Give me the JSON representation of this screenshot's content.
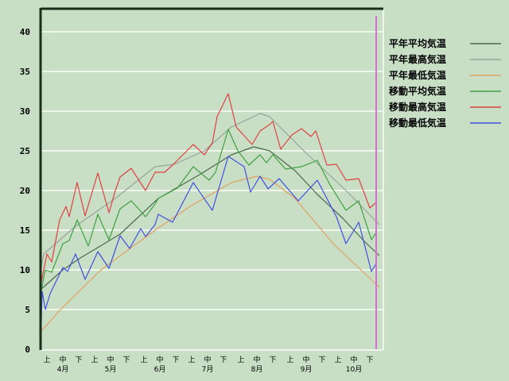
{
  "chart_data": {
    "type": "line",
    "title": "",
    "xlabel": "",
    "ylabel": "",
    "ylim": [
      0,
      40
    ],
    "yticks": [
      "0",
      "5",
      "10",
      "15",
      "20",
      "25",
      "30",
      "35",
      "40"
    ],
    "xlim": [
      "04-01",
      "10-31"
    ],
    "decade_labels": [
      "上",
      "中",
      "下"
    ],
    "months": [
      {
        "label": "4月",
        "month": "04"
      },
      {
        "label": "5月",
        "month": "05"
      },
      {
        "label": "6月",
        "month": "06"
      },
      {
        "label": "7月",
        "month": "07"
      },
      {
        "label": "8月",
        "month": "08"
      },
      {
        "label": "9月",
        "month": "09"
      },
      {
        "label": "10月",
        "month": "10"
      }
    ],
    "grid": true,
    "legend_position": "right",
    "marker_line_date": "10-29",
    "marker_line_color": "#d070d0",
    "series": [
      {
        "name": "平年平均気温",
        "color": "#4a6a4a",
        "points": [
          [
            "04-01",
            7.5
          ],
          [
            "04-15",
            10
          ],
          [
            "04-26",
            11.5
          ],
          [
            "05-21",
            14.5
          ],
          [
            "06-14",
            19
          ],
          [
            "07-10",
            22
          ],
          [
            "07-30",
            24.5
          ],
          [
            "08-13",
            25.5
          ],
          [
            "08-23",
            25
          ],
          [
            "09-08",
            22.5
          ],
          [
            "09-22",
            19.5
          ],
          [
            "10-08",
            16.5
          ],
          [
            "10-22",
            13.5
          ],
          [
            "10-31",
            11.8
          ]
        ]
      },
      {
        "name": "平年最高気温",
        "color": "#9aa39a",
        "points": [
          [
            "04-01",
            10
          ],
          [
            "04-03",
            12
          ],
          [
            "04-23",
            15.5
          ],
          [
            "05-18",
            19
          ],
          [
            "06-12",
            23
          ],
          [
            "06-24",
            23.3
          ],
          [
            "07-13",
            25
          ],
          [
            "07-30",
            28
          ],
          [
            "08-17",
            29.7
          ],
          [
            "08-23",
            29.3
          ],
          [
            "09-15",
            24.7
          ],
          [
            "10-10",
            20
          ],
          [
            "10-31",
            15.7
          ]
        ]
      },
      {
        "name": "平年最低気温",
        "color": "#e0a060",
        "points": [
          [
            "04-01",
            2.2
          ],
          [
            "04-15",
            5.3
          ],
          [
            "05-09",
            10
          ],
          [
            "06-12",
            15
          ],
          [
            "07-04",
            18
          ],
          [
            "07-30",
            21
          ],
          [
            "08-15",
            21.8
          ],
          [
            "08-23",
            21.4
          ],
          [
            "09-08",
            19
          ],
          [
            "10-02",
            13.3
          ],
          [
            "10-31",
            7.8
          ]
        ]
      },
      {
        "name": "移動平均気温",
        "color": "#40a040",
        "points": [
          [
            "04-01",
            7
          ],
          [
            "04-04",
            10
          ],
          [
            "04-08",
            9.7
          ],
          [
            "04-15",
            13.3
          ],
          [
            "04-19",
            13.7
          ],
          [
            "04-24",
            16.3
          ],
          [
            "05-01",
            13
          ],
          [
            "05-07",
            17
          ],
          [
            "05-14",
            13.8
          ],
          [
            "05-21",
            17.7
          ],
          [
            "05-28",
            18.7
          ],
          [
            "06-06",
            16.7
          ],
          [
            "06-12",
            18.3
          ],
          [
            "06-14",
            19
          ],
          [
            "06-26",
            20.3
          ],
          [
            "07-06",
            23
          ],
          [
            "07-16",
            21.3
          ],
          [
            "07-20",
            22.3
          ],
          [
            "07-28",
            27.7
          ],
          [
            "08-03",
            25
          ],
          [
            "08-10",
            23.2
          ],
          [
            "08-17",
            24.5
          ],
          [
            "08-21",
            23.5
          ],
          [
            "08-25",
            24.5
          ],
          [
            "09-02",
            22.7
          ],
          [
            "09-12",
            23
          ],
          [
            "09-22",
            23.8
          ],
          [
            "09-30",
            20.7
          ],
          [
            "10-10",
            17.5
          ],
          [
            "10-18",
            18.7
          ],
          [
            "10-26",
            13.8
          ],
          [
            "10-29",
            14.7
          ]
        ]
      },
      {
        "name": "移動最高気温",
        "color": "#e04040",
        "points": [
          [
            "04-01",
            8
          ],
          [
            "04-05",
            12
          ],
          [
            "04-08",
            11
          ],
          [
            "04-13",
            16.3
          ],
          [
            "04-17",
            18
          ],
          [
            "04-19",
            16.7
          ],
          [
            "04-24",
            21
          ],
          [
            "04-29",
            16.8
          ],
          [
            "05-07",
            22.2
          ],
          [
            "05-14",
            17.2
          ],
          [
            "05-18",
            20
          ],
          [
            "05-21",
            21.7
          ],
          [
            "05-28",
            22.8
          ],
          [
            "06-06",
            20
          ],
          [
            "06-12",
            22.3
          ],
          [
            "06-18",
            22.3
          ],
          [
            "06-23",
            23.2
          ],
          [
            "07-02",
            25
          ],
          [
            "07-06",
            25.8
          ],
          [
            "07-13",
            24.5
          ],
          [
            "07-18",
            26
          ],
          [
            "07-21",
            29.3
          ],
          [
            "07-28",
            32.2
          ],
          [
            "08-02",
            28
          ],
          [
            "08-12",
            25.8
          ],
          [
            "08-17",
            27.5
          ],
          [
            "08-23",
            28.3
          ],
          [
            "08-25",
            28.7
          ],
          [
            "08-30",
            25.2
          ],
          [
            "09-06",
            27
          ],
          [
            "09-12",
            27.8
          ],
          [
            "09-18",
            26.8
          ],
          [
            "09-21",
            27.5
          ],
          [
            "09-28",
            23.2
          ],
          [
            "10-04",
            23.3
          ],
          [
            "10-10",
            21.3
          ],
          [
            "10-18",
            21.5
          ],
          [
            "10-25",
            17.8
          ],
          [
            "10-29",
            18.5
          ]
        ]
      },
      {
        "name": "移動最低気温",
        "color": "#4050e0",
        "points": [
          [
            "04-01",
            0
          ],
          [
            "04-02",
            7.3
          ],
          [
            "04-04",
            5
          ],
          [
            "04-07",
            7
          ],
          [
            "04-15",
            10.3
          ],
          [
            "04-18",
            9.8
          ],
          [
            "04-23",
            12
          ],
          [
            "04-29",
            8.8
          ],
          [
            "05-07",
            12.3
          ],
          [
            "05-14",
            10.2
          ],
          [
            "05-21",
            14.3
          ],
          [
            "05-27",
            12.7
          ],
          [
            "06-03",
            15.2
          ],
          [
            "06-06",
            14.2
          ],
          [
            "06-12",
            15.7
          ],
          [
            "06-14",
            17
          ],
          [
            "06-23",
            16
          ],
          [
            "07-06",
            21
          ],
          [
            "07-18",
            17.5
          ],
          [
            "07-28",
            24.3
          ],
          [
            "08-07",
            23
          ],
          [
            "08-11",
            19.8
          ],
          [
            "08-17",
            21.8
          ],
          [
            "08-22",
            20.2
          ],
          [
            "08-29",
            21.5
          ],
          [
            "09-10",
            18.7
          ],
          [
            "09-22",
            21.3
          ],
          [
            "10-04",
            16.7
          ],
          [
            "10-10",
            13.3
          ],
          [
            "10-18",
            16
          ],
          [
            "10-26",
            9.8
          ],
          [
            "10-29",
            10.8
          ]
        ]
      }
    ]
  }
}
